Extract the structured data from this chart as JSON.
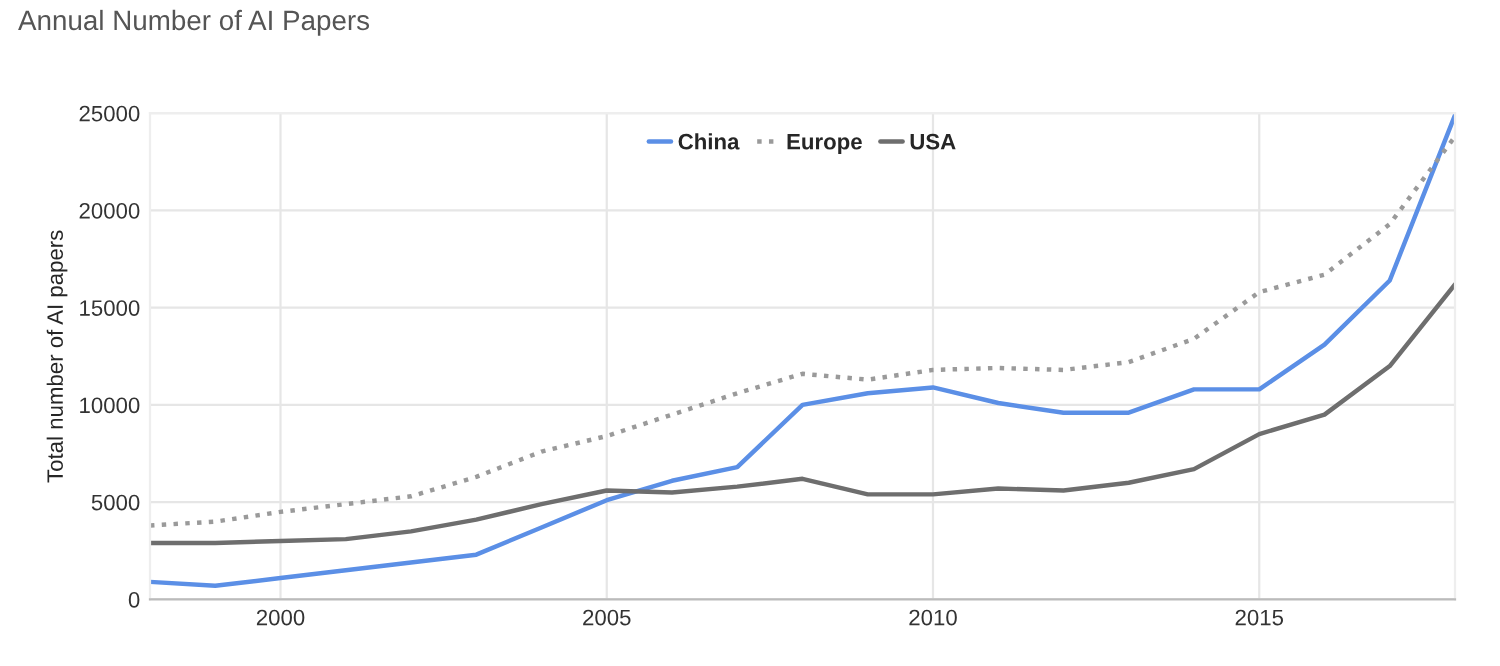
{
  "chart_data": {
    "type": "line",
    "title": "Annual Number of AI Papers",
    "ylabel": "Total number of AI papers",
    "x": [
      1998,
      1999,
      2000,
      2001,
      2002,
      2003,
      2004,
      2005,
      2006,
      2007,
      2008,
      2009,
      2010,
      2011,
      2012,
      2013,
      2014,
      2015,
      2016,
      2017,
      2018
    ],
    "series": [
      {
        "name": "China",
        "color": "#5b8fe6",
        "line_style": "solid",
        "values": [
          900,
          700,
          1100,
          1500,
          1900,
          2300,
          3700,
          5100,
          6100,
          6800,
          10000,
          10600,
          10900,
          10100,
          9600,
          9600,
          10800,
          10800,
          13100,
          16400,
          24900
        ]
      },
      {
        "name": "Europe",
        "color": "#9a9a9a",
        "line_style": "dotted",
        "values": [
          3800,
          4000,
          4500,
          4900,
          5300,
          6300,
          7600,
          8400,
          9500,
          10600,
          11600,
          11300,
          11800,
          11900,
          11800,
          12200,
          13400,
          15800,
          16700,
          19300,
          23800
        ]
      },
      {
        "name": "USA",
        "color": "#6e6e6e",
        "line_style": "solid",
        "values": [
          2900,
          2900,
          3000,
          3100,
          3500,
          4100,
          4900,
          5600,
          5500,
          5800,
          6200,
          5400,
          5400,
          5700,
          5600,
          6000,
          6700,
          8500,
          9500,
          12000,
          16200
        ]
      }
    ],
    "xlim": [
      1998,
      2018
    ],
    "xticks": [
      2000,
      2005,
      2010,
      2015
    ],
    "ylim": [
      0,
      25000
    ],
    "yticks": [
      0,
      5000,
      10000,
      15000,
      20000,
      25000
    ],
    "grid": true,
    "legend": "top",
    "marker": "none"
  }
}
